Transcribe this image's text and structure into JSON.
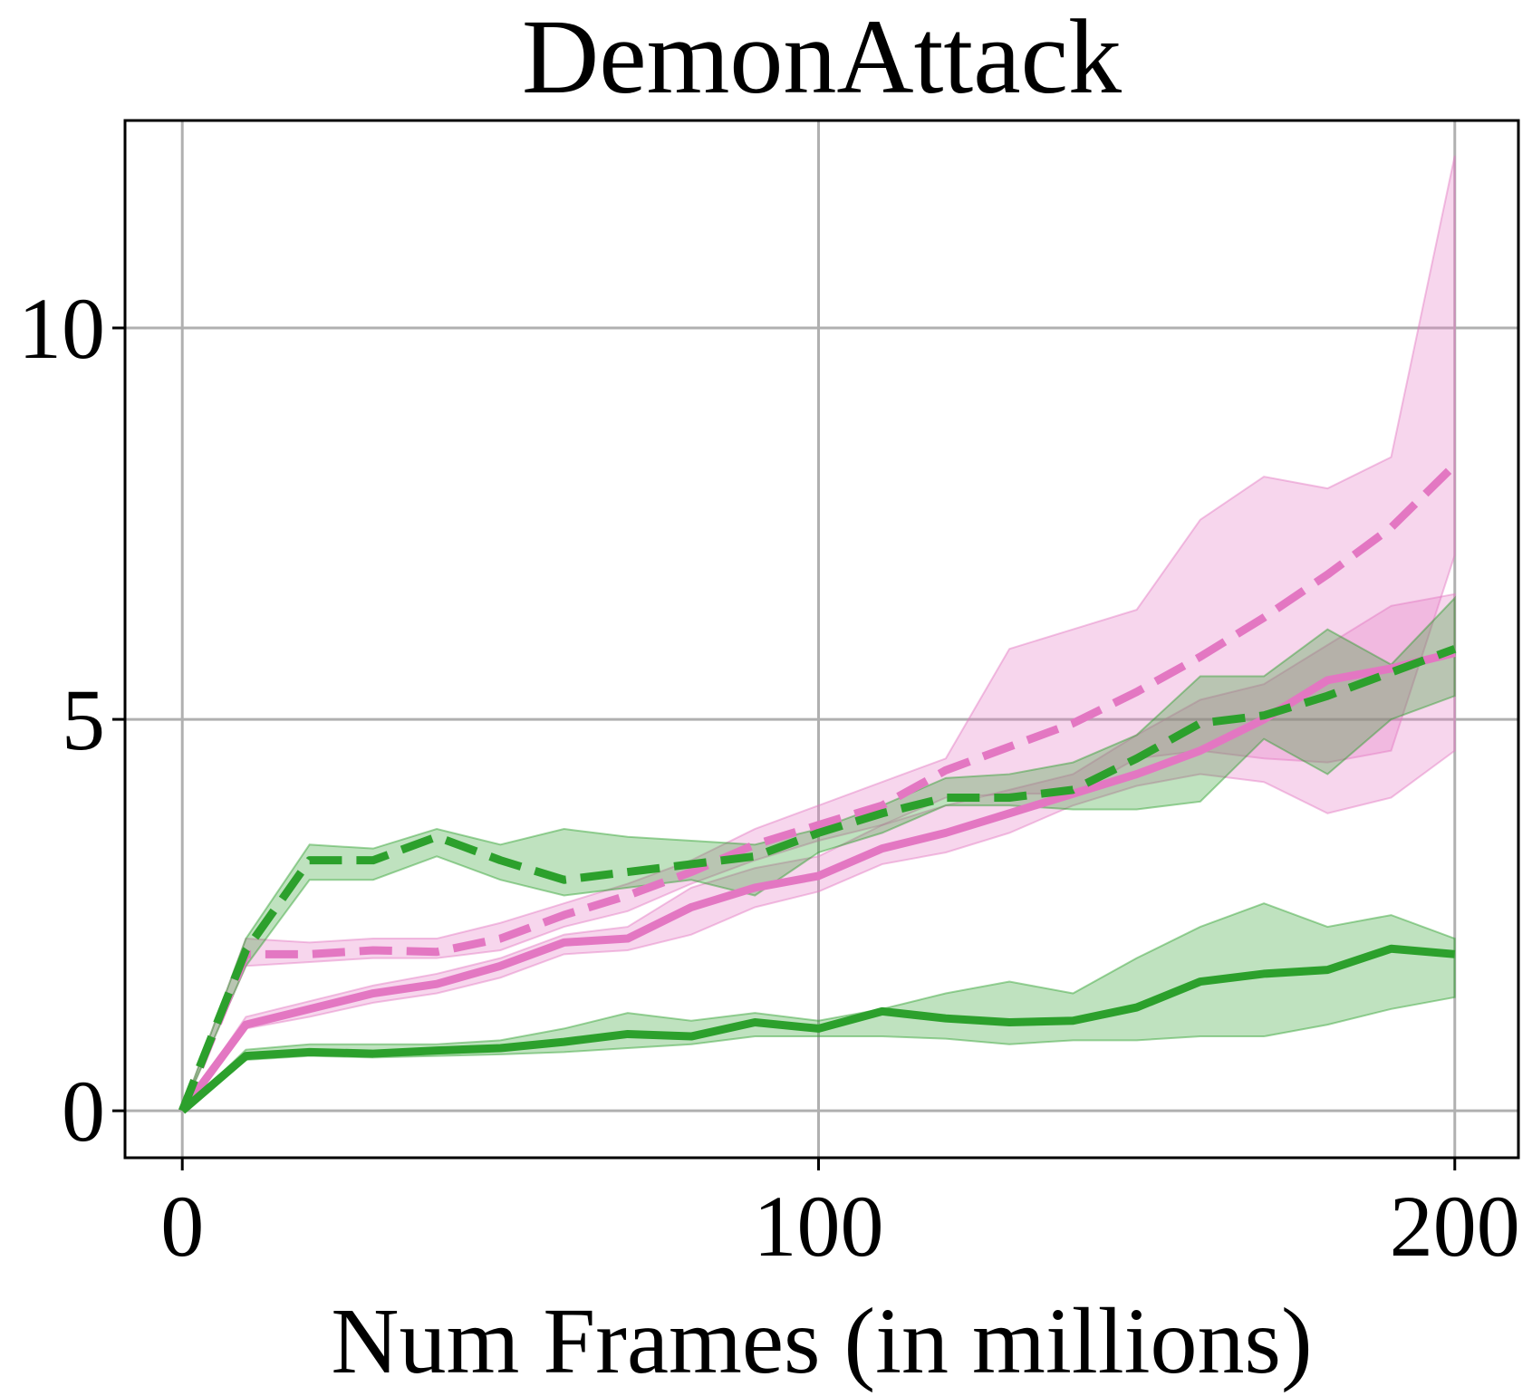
{
  "chart_data": {
    "type": "line",
    "title": "DemonAttack",
    "xlabel": "Num Frames (in millions)",
    "ylabel": "",
    "xlim": [
      -9,
      210
    ],
    "ylim": [
      -0.6,
      12.65
    ],
    "xticks": [
      0,
      100,
      200
    ],
    "xtick_labels": [
      "0",
      "100",
      "200"
    ],
    "yticks": [
      0,
      5,
      10
    ],
    "ytick_labels": [
      "0",
      "5",
      "10"
    ],
    "grid": true,
    "legend": "none",
    "x": [
      0,
      10,
      20,
      30,
      40,
      50,
      60,
      70,
      80,
      90,
      100,
      110,
      120,
      130,
      140,
      150,
      160,
      170,
      180,
      190,
      200
    ],
    "series": [
      {
        "color": "#e377c2",
        "style": "dashed",
        "values": [
          0,
          2.0,
          2.0,
          2.05,
          2.03,
          2.2,
          2.5,
          2.75,
          3.05,
          3.4,
          3.65,
          3.9,
          4.35,
          4.65,
          4.95,
          5.35,
          5.8,
          6.3,
          6.85,
          7.45,
          8.25
        ],
        "lower": [
          0,
          1.85,
          1.9,
          1.95,
          1.95,
          2.05,
          2.35,
          2.55,
          2.9,
          3.2,
          3.45,
          3.65,
          4.0,
          4.05,
          4.05,
          4.5,
          4.6,
          4.5,
          4.45,
          4.6,
          7.1
        ],
        "upper": [
          0,
          2.2,
          2.15,
          2.2,
          2.2,
          2.4,
          2.65,
          2.9,
          3.2,
          3.6,
          3.9,
          4.2,
          4.5,
          5.9,
          6.15,
          6.4,
          7.55,
          8.1,
          7.95,
          8.35,
          12.2
        ]
      },
      {
        "color": "#e377c2",
        "style": "solid",
        "values": [
          0,
          1.1,
          1.3,
          1.5,
          1.62,
          1.85,
          2.15,
          2.2,
          2.6,
          2.85,
          3.0,
          3.35,
          3.55,
          3.8,
          4.05,
          4.3,
          4.6,
          5.0,
          5.5,
          5.65,
          5.85
        ],
        "lower": [
          0,
          1.05,
          1.2,
          1.38,
          1.5,
          1.7,
          2.0,
          2.05,
          2.25,
          2.6,
          2.8,
          3.15,
          3.3,
          3.55,
          3.9,
          4.15,
          4.3,
          4.2,
          3.8,
          4.0,
          4.6
        ],
        "upper": [
          0,
          1.2,
          1.4,
          1.6,
          1.75,
          1.95,
          2.25,
          2.35,
          2.85,
          3.1,
          3.25,
          3.65,
          3.9,
          4.1,
          4.3,
          4.8,
          5.25,
          5.45,
          5.95,
          6.45,
          6.6
        ]
      },
      {
        "color": "#2ca02c",
        "style": "dashed",
        "values": [
          0,
          2.05,
          3.2,
          3.2,
          3.5,
          3.2,
          2.95,
          3.05,
          3.15,
          3.25,
          3.55,
          3.8,
          4.0,
          4.0,
          4.1,
          4.5,
          4.95,
          5.05,
          5.3,
          5.6,
          5.9
        ],
        "lower": [
          0,
          1.85,
          2.95,
          2.95,
          3.25,
          2.95,
          2.75,
          2.85,
          2.95,
          2.75,
          3.3,
          3.55,
          3.9,
          3.9,
          3.85,
          3.85,
          3.95,
          4.75,
          4.3,
          5.0,
          5.3
        ],
        "upper": [
          0,
          2.2,
          3.4,
          3.35,
          3.6,
          3.4,
          3.6,
          3.5,
          3.45,
          3.4,
          3.6,
          3.9,
          4.25,
          4.3,
          4.45,
          4.8,
          5.55,
          5.55,
          6.15,
          5.7,
          6.55
        ]
      },
      {
        "color": "#2ca02c",
        "style": "solid",
        "values": [
          0,
          0.7,
          0.75,
          0.73,
          0.77,
          0.8,
          0.88,
          0.98,
          0.95,
          1.13,
          1.05,
          1.27,
          1.18,
          1.13,
          1.15,
          1.32,
          1.65,
          1.75,
          1.8,
          2.07,
          2.0
        ],
        "lower": [
          0,
          0.65,
          0.7,
          0.68,
          0.7,
          0.72,
          0.75,
          0.8,
          0.85,
          0.95,
          0.95,
          0.95,
          0.92,
          0.85,
          0.9,
          0.9,
          0.95,
          0.95,
          1.1,
          1.3,
          1.45
        ],
        "upper": [
          0,
          0.78,
          0.85,
          0.85,
          0.85,
          0.9,
          1.05,
          1.25,
          1.15,
          1.25,
          1.15,
          1.3,
          1.5,
          1.65,
          1.5,
          1.95,
          2.35,
          2.65,
          2.35,
          2.5,
          2.2
        ]
      }
    ]
  }
}
